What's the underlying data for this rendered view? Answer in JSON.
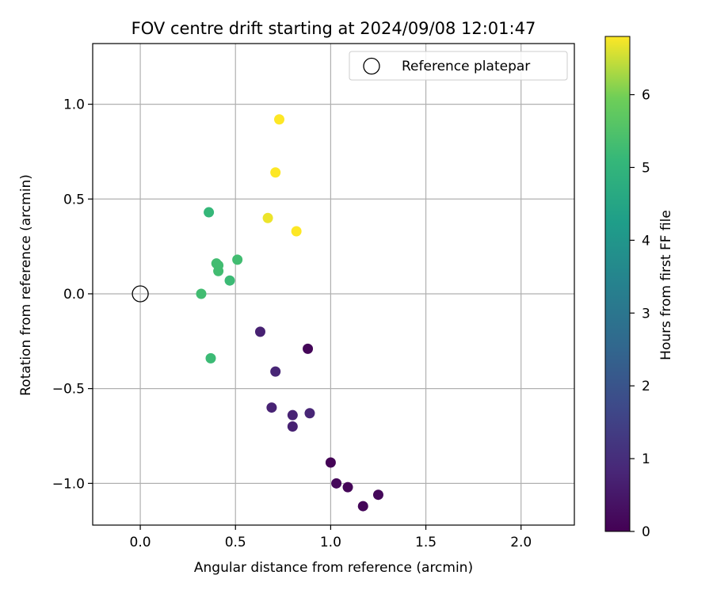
{
  "chart_data": {
    "type": "scatter",
    "title": "FOV centre drift starting at 2024/09/08 12:01:47",
    "xlabel": "Angular distance from reference (arcmin)",
    "ylabel": "Rotation from reference (arcmin)",
    "xlim": [
      -0.25,
      2.28
    ],
    "ylim": [
      -1.22,
      1.32
    ],
    "xticks": [
      0.0,
      0.5,
      1.0,
      1.5,
      2.0
    ],
    "xtick_labels": [
      "0.0",
      "0.5",
      "1.0",
      "1.5",
      "2.0"
    ],
    "yticks": [
      -1.0,
      -0.5,
      0.0,
      0.5,
      1.0
    ],
    "ytick_labels": [
      "−1.0",
      "−0.5",
      "0.0",
      "0.5",
      "1.0"
    ],
    "grid": true,
    "legend": {
      "placement": "top-right",
      "entries": [
        "Reference platepar"
      ]
    },
    "reference_point": {
      "x": 0.0,
      "y": 0.0
    },
    "colorbar": {
      "label": "Hours from first FF file",
      "colormap": "viridis",
      "range": [
        0,
        6.8
      ],
      "ticks": [
        0,
        1,
        2,
        3,
        4,
        5,
        6
      ],
      "tick_labels": [
        "0",
        "1",
        "2",
        "3",
        "4",
        "5",
        "6"
      ]
    },
    "points": [
      {
        "x": 0.88,
        "y": -0.29,
        "hours": 0.1
      },
      {
        "x": 1.0,
        "y": -0.89,
        "hours": 0.05
      },
      {
        "x": 1.03,
        "y": -1.0,
        "hours": 0.15
      },
      {
        "x": 1.09,
        "y": -1.02,
        "hours": 0.1
      },
      {
        "x": 1.17,
        "y": -1.12,
        "hours": 0.1
      },
      {
        "x": 1.25,
        "y": -1.06,
        "hours": 0.15
      },
      {
        "x": 0.63,
        "y": -0.2,
        "hours": 0.7
      },
      {
        "x": 0.71,
        "y": -0.41,
        "hours": 0.8
      },
      {
        "x": 0.69,
        "y": -0.6,
        "hours": 0.75
      },
      {
        "x": 0.8,
        "y": -0.64,
        "hours": 0.75
      },
      {
        "x": 0.89,
        "y": -0.63,
        "hours": 0.8
      },
      {
        "x": 0.8,
        "y": -0.7,
        "hours": 0.7
      },
      {
        "x": 0.36,
        "y": 0.43,
        "hours": 5.1
      },
      {
        "x": 0.4,
        "y": 0.16,
        "hours": 5.3
      },
      {
        "x": 0.41,
        "y": 0.15,
        "hours": 5.3
      },
      {
        "x": 0.41,
        "y": 0.12,
        "hours": 5.3
      },
      {
        "x": 0.51,
        "y": 0.18,
        "hours": 5.3
      },
      {
        "x": 0.47,
        "y": 0.07,
        "hours": 5.2
      },
      {
        "x": 0.32,
        "y": 0.0,
        "hours": 5.3
      },
      {
        "x": 0.37,
        "y": -0.34,
        "hours": 5.2
      },
      {
        "x": 0.73,
        "y": 0.92,
        "hours": 6.8
      },
      {
        "x": 0.71,
        "y": 0.64,
        "hours": 6.8
      },
      {
        "x": 0.67,
        "y": 0.4,
        "hours": 6.7
      },
      {
        "x": 0.82,
        "y": 0.33,
        "hours": 6.8
      }
    ]
  }
}
